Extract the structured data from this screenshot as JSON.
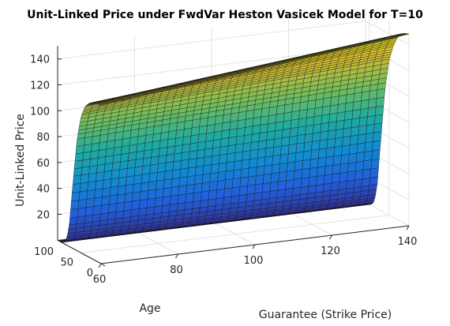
{
  "chart_data": {
    "type": "surface",
    "title": "Unit-Linked Price under FwdVar Heston Vasicek Model for T=10",
    "xlabel": "Guarantee (Strike Price)",
    "ylabel": "Age",
    "zlabel": "Unit-Linked Price",
    "x_ticks": [
      "60",
      "80",
      "100",
      "120",
      "140"
    ],
    "y_ticks": [
      "0",
      "50",
      "100"
    ],
    "z_ticks": [
      "20",
      "40",
      "60",
      "80",
      "100",
      "120",
      "140"
    ],
    "xlim": [
      60,
      140
    ],
    "ylim": [
      0,
      110
    ],
    "zlim": [
      0,
      150
    ],
    "grid": true,
    "colormap": "parula",
    "surface_profile": {
      "age": [
        0,
        10,
        20,
        30,
        40,
        50,
        60,
        70,
        80,
        85,
        90,
        95,
        100,
        105,
        110
      ],
      "price_at_guarantee_60": [
        122,
        122,
        121,
        119,
        115,
        106,
        88,
        55,
        18,
        8,
        3,
        1,
        0,
        0,
        0
      ],
      "price_at_guarantee_140": [
        148,
        147,
        145,
        140,
        132,
        120,
        98,
        60,
        20,
        9,
        3,
        1,
        0,
        0,
        0
      ]
    }
  }
}
